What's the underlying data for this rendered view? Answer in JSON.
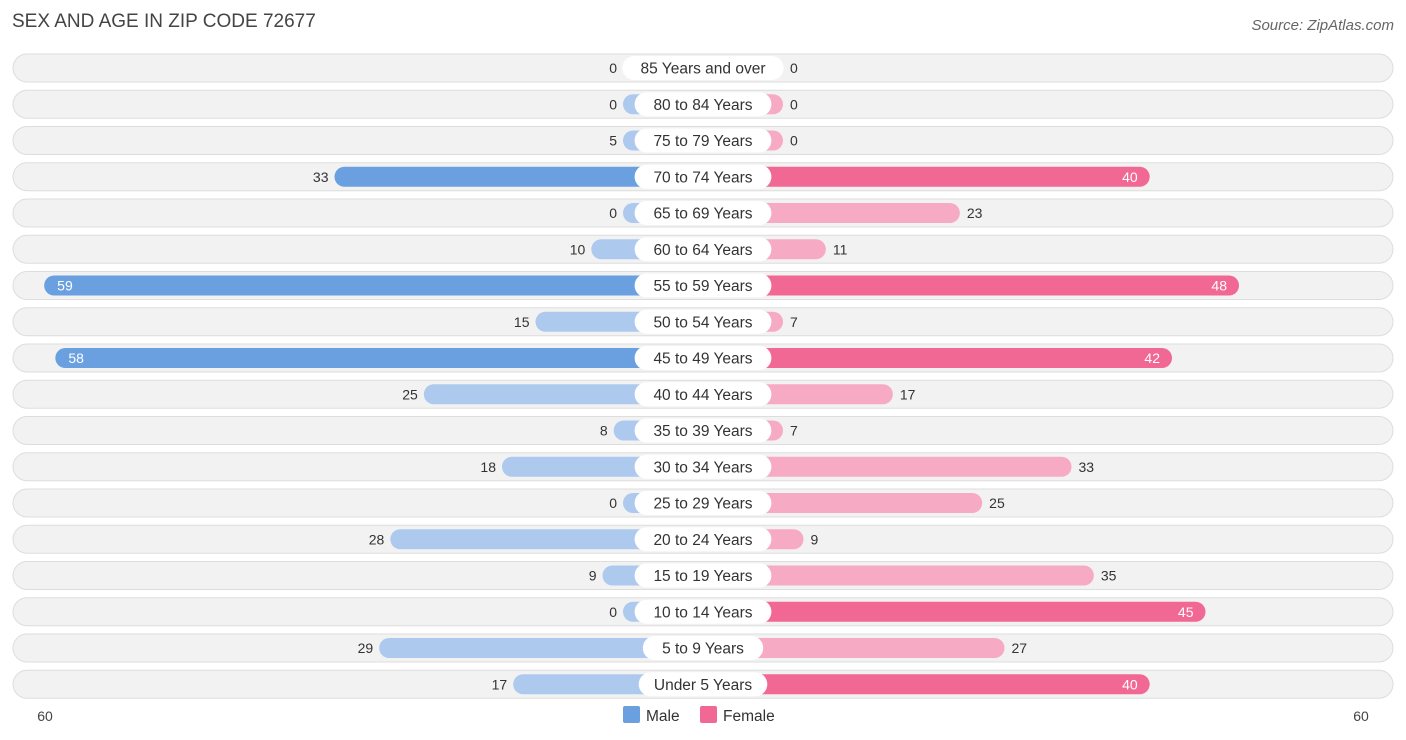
{
  "title": "SEX AND AGE IN ZIP CODE 72677",
  "source": "Source: ZipAtlas.com",
  "chart_data": {
    "type": "bar",
    "orientation": "horizontal-diverging",
    "categories": [
      "85 Years and over",
      "80 to 84 Years",
      "75 to 79 Years",
      "70 to 74 Years",
      "65 to 69 Years",
      "60 to 64 Years",
      "55 to 59 Years",
      "50 to 54 Years",
      "45 to 49 Years",
      "40 to 44 Years",
      "35 to 39 Years",
      "30 to 34 Years",
      "25 to 29 Years",
      "20 to 24 Years",
      "15 to 19 Years",
      "10 to 14 Years",
      "5 to 9 Years",
      "Under 5 Years"
    ],
    "series": [
      {
        "name": "Male",
        "values": [
          0,
          0,
          5,
          33,
          0,
          10,
          59,
          15,
          58,
          25,
          8,
          18,
          0,
          28,
          9,
          0,
          29,
          17
        ]
      },
      {
        "name": "Female",
        "values": [
          0,
          0,
          0,
          40,
          23,
          11,
          48,
          7,
          42,
          17,
          7,
          33,
          25,
          9,
          35,
          45,
          27,
          40
        ]
      }
    ],
    "xlim": [
      -60,
      60
    ],
    "axis_labels": {
      "left": "60",
      "right": "60"
    },
    "legend_position": "bottom-center",
    "colors": {
      "male_strong": "#6a9fe0",
      "male_light": "#adc9ee",
      "female_strong": "#f26894",
      "female_light": "#f7aac3"
    }
  }
}
